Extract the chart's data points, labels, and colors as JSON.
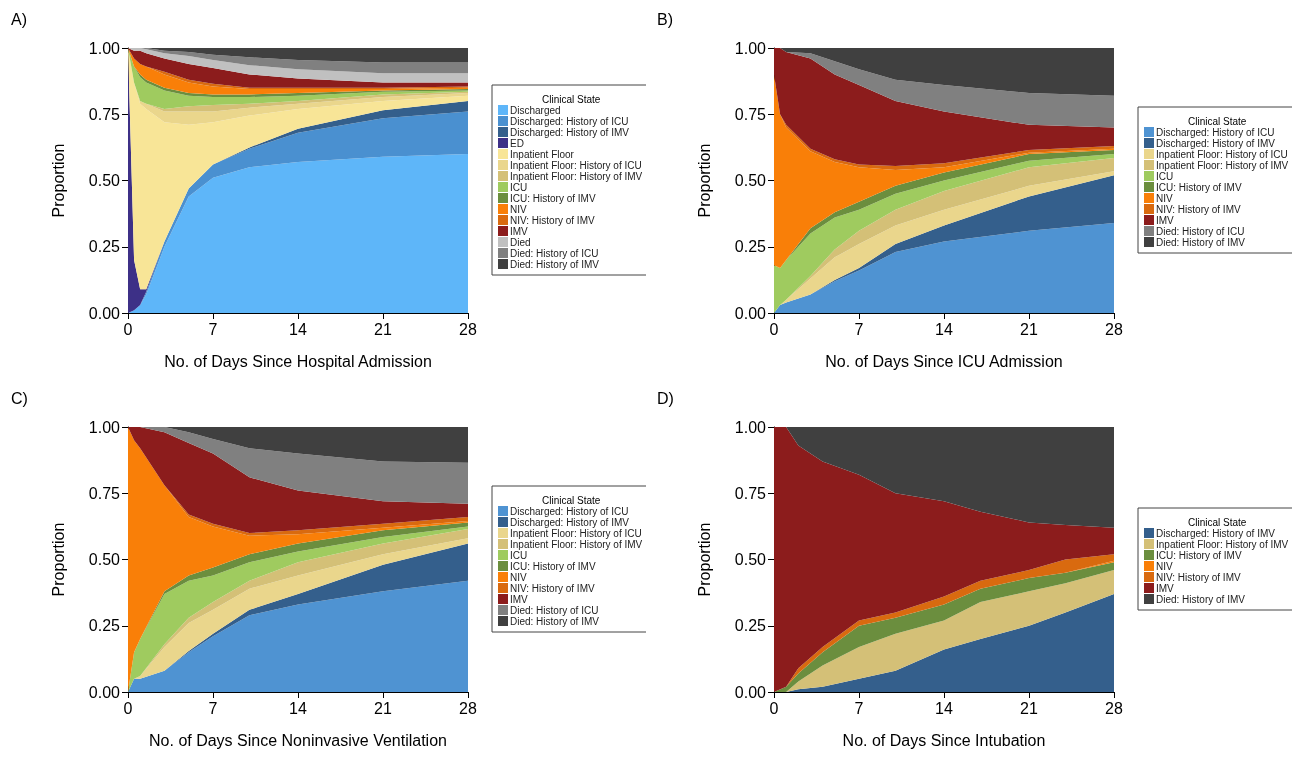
{
  "chart_data": [
    {
      "type": "area",
      "title": "A)",
      "xlabel": "No. of Days Since Hospital Admission",
      "ylabel": "Proportion",
      "legend_title": "Clinical State",
      "legend": "right",
      "stacked": true,
      "xlim": [
        0,
        28
      ],
      "xticks": [
        0,
        7,
        14,
        21,
        28
      ],
      "ylim": [
        0,
        1
      ],
      "yticks": [
        {
          "value": 0,
          "label": "0.00"
        },
        {
          "value": 0.25,
          "label": "0.25"
        },
        {
          "value": 0.5,
          "label": "0.50"
        },
        {
          "value": 0.75,
          "label": "0.75"
        },
        {
          "value": 1,
          "label": "1.00"
        }
      ],
      "x": [
        0,
        0.5,
        1,
        1.5,
        3,
        5,
        7,
        10,
        14,
        21,
        28
      ],
      "series": [
        {
          "name": "Discharged",
          "color": "#5eb6f9",
          "values": [
            0,
            0.01,
            0.03,
            0.07,
            0.25,
            0.44,
            0.51,
            0.55,
            0.57,
            0.59,
            0.6
          ]
        },
        {
          "name": "Discharged: History of ICU",
          "color": "#4a90d0",
          "values": [
            0,
            0,
            0,
            0.01,
            0.02,
            0.03,
            0.05,
            0.07,
            0.11,
            0.145,
            0.16
          ]
        },
        {
          "name": "Discharged: History of IMV",
          "color": "#345f8c",
          "values": [
            0,
            0,
            0,
            0,
            0,
            0,
            0,
            0.005,
            0.015,
            0.03,
            0.04
          ]
        },
        {
          "name": "ED",
          "color": "#3d3087",
          "values": [
            1,
            0.19,
            0.06,
            0.01,
            0,
            0,
            0,
            0,
            0,
            0,
            0
          ]
        },
        {
          "name": "Inpatient Floor",
          "color": "#f8e597",
          "values": [
            0,
            0.67,
            0.7,
            0.68,
            0.45,
            0.24,
            0.16,
            0.12,
            0.075,
            0.035,
            0.02
          ]
        },
        {
          "name": "Inpatient Floor: History of ICU",
          "color": "#ead68c",
          "values": [
            0,
            0,
            0.01,
            0.02,
            0.04,
            0.05,
            0.04,
            0.03,
            0.02,
            0.015,
            0.01
          ]
        },
        {
          "name": "Inpatient Floor: History of IMV",
          "color": "#d4c077",
          "values": [
            0,
            0,
            0,
            0,
            0.01,
            0.02,
            0.025,
            0.015,
            0.01,
            0.01,
            0.005
          ]
        },
        {
          "name": "ICU",
          "color": "#9fcb5f",
          "values": [
            0,
            0.06,
            0.09,
            0.08,
            0.07,
            0.04,
            0.03,
            0.025,
            0.02,
            0.01,
            0.005
          ]
        },
        {
          "name": "ICU: History of IMV",
          "color": "#6b8e3e",
          "values": [
            0,
            0,
            0.01,
            0.01,
            0.01,
            0.01,
            0.01,
            0.01,
            0.01,
            0.005,
            0.005
          ]
        },
        {
          "name": "NIV",
          "color": "#f97f08",
          "values": [
            0,
            0.03,
            0.04,
            0.05,
            0.05,
            0.04,
            0.03,
            0.02,
            0.015,
            0.005,
            0.005
          ]
        },
        {
          "name": "NIV: History of IMV",
          "color": "#d96a0f",
          "values": [
            0,
            0,
            0,
            0,
            0.01,
            0.01,
            0.01,
            0.005,
            0.005,
            0.005,
            0.005
          ]
        },
        {
          "name": "IMV",
          "color": "#8c1c1c",
          "values": [
            0,
            0.03,
            0.05,
            0.05,
            0.05,
            0.06,
            0.06,
            0.05,
            0.035,
            0.02,
            0.015
          ]
        },
        {
          "name": "Died",
          "color": "#c0c0c0",
          "values": [
            0,
            0.01,
            0.01,
            0.015,
            0.02,
            0.03,
            0.03,
            0.035,
            0.035,
            0.035,
            0.035
          ]
        },
        {
          "name": "Died: History of ICU",
          "color": "#808080",
          "values": [
            0,
            0,
            0,
            0.005,
            0.01,
            0.015,
            0.02,
            0.03,
            0.035,
            0.04,
            0.04
          ]
        },
        {
          "name": "Died: History of IMV",
          "color": "#404040",
          "values": [
            0,
            0,
            0,
            0,
            0.01,
            0.015,
            0.025,
            0.035,
            0.045,
            0.055,
            0.055
          ]
        }
      ]
    },
    {
      "type": "area",
      "title": "B)",
      "xlabel": "No. of Days Since ICU Admission",
      "ylabel": "Proportion",
      "legend_title": "Clinical State",
      "legend": "right",
      "stacked": true,
      "xlim": [
        0,
        28
      ],
      "xticks": [
        0,
        7,
        14,
        21,
        28
      ],
      "ylim": [
        0,
        1
      ],
      "yticks": [
        {
          "value": 0,
          "label": "0.00"
        },
        {
          "value": 0.25,
          "label": "0.25"
        },
        {
          "value": 0.5,
          "label": "0.50"
        },
        {
          "value": 0.75,
          "label": "0.75"
        },
        {
          "value": 1,
          "label": "1.00"
        }
      ],
      "x": [
        0,
        0.5,
        1,
        3,
        5,
        7,
        10,
        14,
        21,
        28
      ],
      "series": [
        {
          "name": "Discharged: History of ICU",
          "color": "#4f93d2",
          "values": [
            0,
            0.03,
            0.04,
            0.07,
            0.12,
            0.16,
            0.23,
            0.27,
            0.31,
            0.34
          ]
        },
        {
          "name": "Discharged: History of IMV",
          "color": "#345f8c",
          "values": [
            0,
            0,
            0,
            0,
            0.005,
            0.01,
            0.03,
            0.06,
            0.13,
            0.18
          ]
        },
        {
          "name": "Inpatient Floor: History of ICU",
          "color": "#ead68c",
          "values": [
            0,
            0,
            0.01,
            0.06,
            0.085,
            0.09,
            0.07,
            0.06,
            0.04,
            0.015
          ]
        },
        {
          "name": "Inpatient Floor: History of IMV",
          "color": "#d4c077",
          "values": [
            0,
            0,
            0,
            0.01,
            0.03,
            0.05,
            0.06,
            0.07,
            0.07,
            0.05
          ]
        },
        {
          "name": "ICU",
          "color": "#9fcb5f",
          "values": [
            0.18,
            0.14,
            0.15,
            0.16,
            0.12,
            0.08,
            0.06,
            0.04,
            0.025,
            0.015
          ]
        },
        {
          "name": "ICU: History of IMV",
          "color": "#6b8e3e",
          "values": [
            0,
            0,
            0,
            0.02,
            0.02,
            0.03,
            0.03,
            0.03,
            0.025,
            0.015
          ]
        },
        {
          "name": "NIV",
          "color": "#f97f08",
          "values": [
            0.72,
            0.58,
            0.5,
            0.29,
            0.19,
            0.13,
            0.06,
            0.02,
            0.005,
            0.005
          ]
        },
        {
          "name": "NIV: History of IMV",
          "color": "#d96a0f",
          "values": [
            0,
            0,
            0.01,
            0.01,
            0.01,
            0.01,
            0.015,
            0.015,
            0.01,
            0.01
          ]
        },
        {
          "name": "IMV",
          "color": "#8c1c1c",
          "values": [
            0.1,
            0.25,
            0.275,
            0.34,
            0.32,
            0.3,
            0.245,
            0.195,
            0.095,
            0.07
          ]
        },
        {
          "name": "Died: History of ICU",
          "color": "#808080",
          "values": [
            0,
            0,
            0,
            0.02,
            0.05,
            0.06,
            0.08,
            0.1,
            0.12,
            0.12
          ]
        },
        {
          "name": "Died: History of IMV",
          "color": "#404040",
          "values": [
            0,
            0,
            0.015,
            0.02,
            0.05,
            0.08,
            0.12,
            0.14,
            0.17,
            0.18
          ]
        }
      ]
    },
    {
      "type": "area",
      "title": "C)",
      "xlabel": "No. of Days Since Noninvasive Ventilation",
      "ylabel": "Proportion",
      "legend_title": "Clinical State",
      "legend": "right",
      "stacked": true,
      "xlim": [
        0,
        28
      ],
      "xticks": [
        0,
        7,
        14,
        21,
        28
      ],
      "ylim": [
        0,
        1
      ],
      "yticks": [
        {
          "value": 0,
          "label": "0.00"
        },
        {
          "value": 0.25,
          "label": "0.25"
        },
        {
          "value": 0.5,
          "label": "0.50"
        },
        {
          "value": 0.75,
          "label": "0.75"
        },
        {
          "value": 1,
          "label": "1.00"
        }
      ],
      "x": [
        0,
        0.5,
        1,
        3,
        5,
        7,
        10,
        14,
        21,
        28
      ],
      "series": [
        {
          "name": "Discharged: History of ICU",
          "color": "#4f93d2",
          "values": [
            0,
            0.05,
            0.05,
            0.08,
            0.15,
            0.21,
            0.29,
            0.33,
            0.38,
            0.42
          ]
        },
        {
          "name": "Discharged: History of IMV",
          "color": "#345f8c",
          "values": [
            0,
            0,
            0,
            0,
            0.005,
            0.01,
            0.02,
            0.04,
            0.1,
            0.14
          ]
        },
        {
          "name": "Inpatient Floor: History of ICU",
          "color": "#ead68c",
          "values": [
            0,
            0,
            0.01,
            0.09,
            0.105,
            0.09,
            0.08,
            0.07,
            0.04,
            0.02
          ]
        },
        {
          "name": "Inpatient Floor: History of IMV",
          "color": "#d4c077",
          "values": [
            0,
            0,
            0,
            0.01,
            0.02,
            0.03,
            0.03,
            0.05,
            0.04,
            0.035
          ]
        },
        {
          "name": "ICU",
          "color": "#9fcb5f",
          "values": [
            0,
            0.1,
            0.14,
            0.19,
            0.14,
            0.1,
            0.07,
            0.04,
            0.025,
            0.01
          ]
        },
        {
          "name": "ICU: History of IMV",
          "color": "#6b8e3e",
          "values": [
            0,
            0,
            0,
            0.01,
            0.02,
            0.03,
            0.03,
            0.03,
            0.025,
            0.015
          ]
        },
        {
          "name": "NIV",
          "color": "#f97f08",
          "values": [
            1,
            0.8,
            0.72,
            0.4,
            0.22,
            0.155,
            0.07,
            0.035,
            0.01,
            0.005
          ]
        },
        {
          "name": "NIV: History of IMV",
          "color": "#d96a0f",
          "values": [
            0,
            0,
            0,
            0,
            0.01,
            0.01,
            0.01,
            0.015,
            0.015,
            0.015
          ]
        },
        {
          "name": "IMV",
          "color": "#8c1c1c",
          "values": [
            0,
            0.05,
            0.08,
            0.2,
            0.27,
            0.265,
            0.21,
            0.15,
            0.085,
            0.05
          ]
        },
        {
          "name": "Died: History of ICU",
          "color": "#808080",
          "values": [
            0,
            0,
            0,
            0.02,
            0.04,
            0.055,
            0.11,
            0.14,
            0.15,
            0.155
          ]
        },
        {
          "name": "Died: History of IMV",
          "color": "#404040",
          "values": [
            0,
            0,
            0,
            0,
            0.02,
            0.045,
            0.08,
            0.1,
            0.13,
            0.135
          ]
        }
      ]
    },
    {
      "type": "area",
      "title": "D)",
      "xlabel": "No. of Days Since Intubation",
      "ylabel": "Proportion",
      "legend_title": "Clinical State",
      "legend": "right",
      "stacked": true,
      "xlim": [
        0,
        28
      ],
      "xticks": [
        0,
        7,
        14,
        21,
        28
      ],
      "ylim": [
        0,
        1
      ],
      "yticks": [
        {
          "value": 0,
          "label": "0.00"
        },
        {
          "value": 0.25,
          "label": "0.25"
        },
        {
          "value": 0.5,
          "label": "0.50"
        },
        {
          "value": 0.75,
          "label": "0.75"
        },
        {
          "value": 1,
          "label": "1.00"
        }
      ],
      "x": [
        0,
        1,
        2,
        4,
        7,
        10,
        14,
        17,
        21,
        24,
        28
      ],
      "series": [
        {
          "name": "Discharged: History of IMV",
          "color": "#345f8c",
          "values": [
            0,
            0,
            0.01,
            0.02,
            0.05,
            0.08,
            0.16,
            0.2,
            0.25,
            0.3,
            0.37
          ]
        },
        {
          "name": "Inpatient Floor: History of IMV",
          "color": "#d4c077",
          "values": [
            0,
            0,
            0.03,
            0.08,
            0.12,
            0.14,
            0.11,
            0.14,
            0.13,
            0.11,
            0.09
          ]
        },
        {
          "name": "ICU: History of IMV",
          "color": "#6b8e3e",
          "values": [
            0,
            0.02,
            0.03,
            0.05,
            0.08,
            0.06,
            0.06,
            0.05,
            0.05,
            0.04,
            0.03
          ]
        },
        {
          "name": "NIV",
          "color": "#f97f08",
          "values": [
            0,
            0,
            0,
            0,
            0,
            0,
            0,
            0,
            0,
            0,
            0.005
          ]
        },
        {
          "name": "NIV: History of IMV",
          "color": "#d96a0f",
          "values": [
            0,
            0,
            0.02,
            0.02,
            0.02,
            0.02,
            0.03,
            0.03,
            0.03,
            0.05,
            0.025
          ]
        },
        {
          "name": "IMV",
          "color": "#8c1c1c",
          "values": [
            1,
            0.98,
            0.84,
            0.7,
            0.55,
            0.45,
            0.36,
            0.26,
            0.18,
            0.13,
            0.1
          ]
        },
        {
          "name": "Died: History of IMV",
          "color": "#404040",
          "values": [
            0,
            0,
            0.07,
            0.13,
            0.18,
            0.25,
            0.28,
            0.32,
            0.36,
            0.37,
            0.38
          ]
        }
      ]
    }
  ]
}
